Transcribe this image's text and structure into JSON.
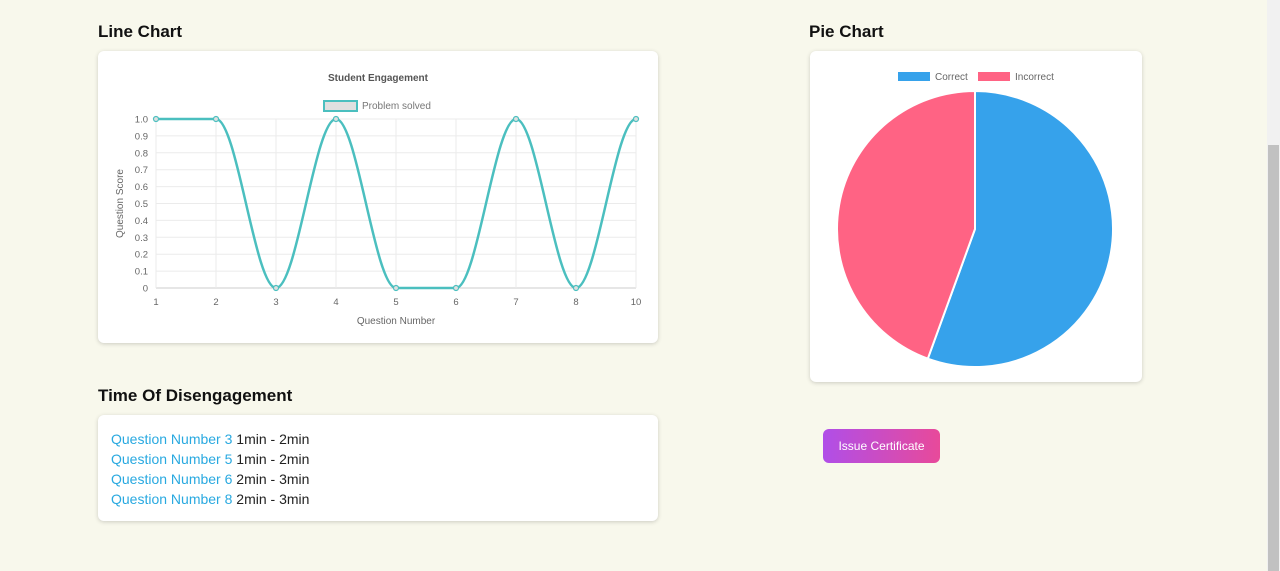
{
  "line_section": {
    "heading": "Line Chart"
  },
  "pie_section": {
    "heading": "Pie Chart"
  },
  "disengagement": {
    "heading": "Time Of Disengagement",
    "items": [
      {
        "question": "Question Number 3",
        "time": "1min - 2min"
      },
      {
        "question": "Question Number 5",
        "time": "1min - 2min"
      },
      {
        "question": "Question Number 6",
        "time": "2min - 3min"
      },
      {
        "question": "Question Number 8",
        "time": "2min - 3min"
      }
    ]
  },
  "certificate_button": "Issue Certificate",
  "chart_data": [
    {
      "type": "line",
      "title": "Student Engagement",
      "xlabel": "Question Number",
      "ylabel": "Question Score",
      "categories": [
        "1",
        "2",
        "3",
        "4",
        "5",
        "6",
        "7",
        "8",
        "10"
      ],
      "series": [
        {
          "name": "Problem solved",
          "values": [
            1,
            1,
            0,
            1,
            0,
            0,
            1,
            0,
            1
          ],
          "color": "#4bbfbf"
        }
      ],
      "ylim": [
        0,
        1
      ],
      "yticks": [
        "0",
        "0.1",
        "0.2",
        "0.3",
        "0.4",
        "0.5",
        "0.6",
        "0.7",
        "0.8",
        "0.9",
        "1.0"
      ],
      "grid": true,
      "legend": "top"
    },
    {
      "type": "pie",
      "labels": [
        "Correct",
        "Incorrect"
      ],
      "values": [
        5,
        4
      ],
      "colors": [
        "#36a2eb",
        "#ff6384"
      ],
      "legend": "top"
    }
  ]
}
